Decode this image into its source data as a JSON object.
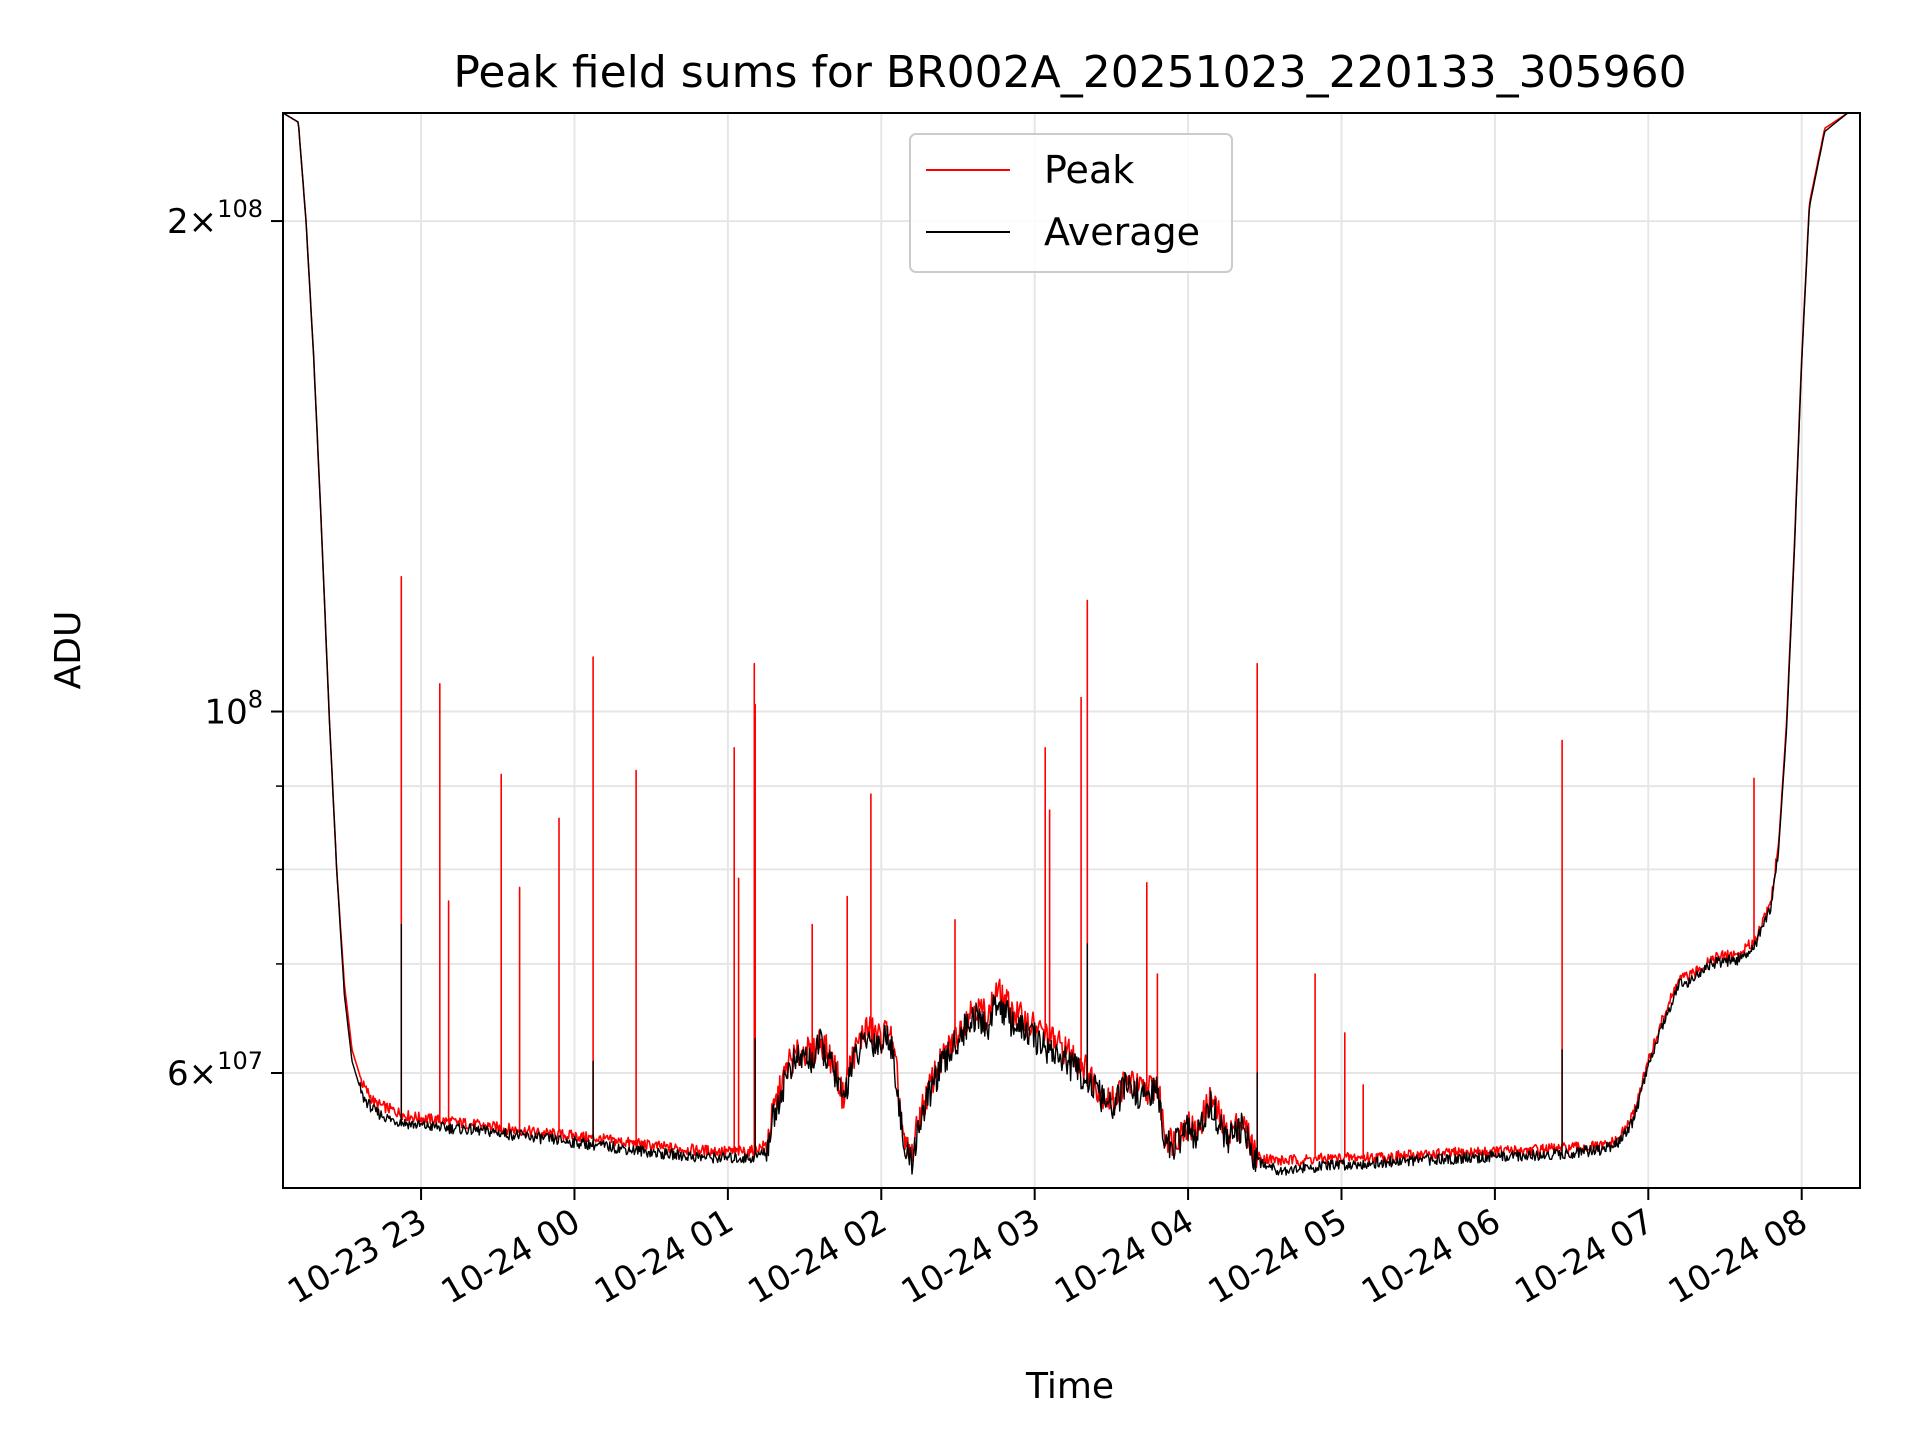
{
  "chart_data": {
    "type": "line",
    "title": "Peak field sums for BR002A_20251023_220133_305960",
    "xlabel": "Time",
    "ylabel": "ADU",
    "yscale": "log",
    "ylim": [
      51000000,
      233000000
    ],
    "xlim_hours": [
      22.1,
      32.38
    ],
    "grid": true,
    "legend_location": "upper center",
    "x_ticks": [
      {
        "label": "10-23 23",
        "hour": 23
      },
      {
        "label": "10-24 00",
        "hour": 24
      },
      {
        "label": "10-24 01",
        "hour": 25
      },
      {
        "label": "10-24 02",
        "hour": 26
      },
      {
        "label": "10-24 03",
        "hour": 27
      },
      {
        "label": "10-24 04",
        "hour": 28
      },
      {
        "label": "10-24 05",
        "hour": 29
      },
      {
        "label": "10-24 06",
        "hour": 30
      },
      {
        "label": "10-24 07",
        "hour": 31
      },
      {
        "label": "10-24 08",
        "hour": 32
      }
    ],
    "y_ticks_major": [
      {
        "label_base": "2",
        "label_sup": "8",
        "times": true,
        "value": 200000000
      },
      {
        "label_base": "10",
        "label_sup": "8",
        "times": false,
        "value": 100000000
      },
      {
        "label_base": "6",
        "label_sup": "7",
        "times": true,
        "value": 60000000
      }
    ],
    "y_ticks_minor": [
      70000000,
      80000000,
      90000000
    ],
    "series": [
      {
        "name": "Peak",
        "color": "#ff0000",
        "points": [
          [
            22.1,
            233000000
          ],
          [
            22.2,
            230000000
          ],
          [
            22.25,
            200000000
          ],
          [
            22.3,
            165000000
          ],
          [
            22.35,
            130000000
          ],
          [
            22.4,
            100000000
          ],
          [
            22.45,
            80000000
          ],
          [
            22.5,
            68000000
          ],
          [
            22.55,
            62000000
          ],
          [
            22.62,
            59000000
          ],
          [
            22.7,
            57500000
          ],
          [
            22.8,
            57000000
          ],
          [
            22.9,
            56500000
          ],
          [
            23.0,
            56300000
          ],
          [
            23.2,
            56000000
          ],
          [
            23.4,
            55700000
          ],
          [
            23.6,
            55400000
          ],
          [
            23.8,
            55100000
          ],
          [
            24.0,
            54900000
          ],
          [
            24.2,
            54600000
          ],
          [
            24.4,
            54300000
          ],
          [
            24.6,
            54000000
          ],
          [
            24.8,
            53800000
          ],
          [
            25.0,
            53700000
          ],
          [
            25.15,
            53700000
          ],
          [
            25.25,
            54200000
          ],
          [
            25.3,
            57000000
          ],
          [
            25.4,
            61000000
          ],
          [
            25.5,
            62000000
          ],
          [
            25.55,
            61500000
          ],
          [
            25.6,
            63000000
          ],
          [
            25.7,
            60500000
          ],
          [
            25.75,
            58000000
          ],
          [
            25.8,
            61000000
          ],
          [
            25.9,
            64000000
          ],
          [
            26.0,
            63000000
          ],
          [
            26.05,
            64000000
          ],
          [
            26.1,
            60000000
          ],
          [
            26.15,
            54000000
          ],
          [
            26.2,
            53500000
          ],
          [
            26.25,
            56500000
          ],
          [
            26.35,
            60000000
          ],
          [
            26.5,
            63500000
          ],
          [
            26.6,
            66000000
          ],
          [
            26.7,
            65000000
          ],
          [
            26.75,
            67500000
          ],
          [
            26.85,
            65500000
          ],
          [
            27.0,
            64000000
          ],
          [
            27.1,
            63000000
          ],
          [
            27.2,
            62000000
          ],
          [
            27.3,
            61000000
          ],
          [
            27.4,
            59000000
          ],
          [
            27.5,
            57500000
          ],
          [
            27.6,
            59500000
          ],
          [
            27.7,
            58500000
          ],
          [
            27.8,
            59000000
          ],
          [
            27.85,
            55000000
          ],
          [
            27.9,
            54500000
          ],
          [
            28.0,
            56000000
          ],
          [
            28.05,
            55000000
          ],
          [
            28.15,
            58000000
          ],
          [
            28.25,
            55000000
          ],
          [
            28.35,
            56000000
          ],
          [
            28.45,
            53300000
          ],
          [
            28.6,
            53000000
          ],
          [
            28.8,
            53100000
          ],
          [
            29.0,
            53200000
          ],
          [
            29.3,
            53300000
          ],
          [
            29.6,
            53500000
          ],
          [
            30.0,
            53700000
          ],
          [
            30.4,
            53900000
          ],
          [
            30.7,
            54100000
          ],
          [
            30.8,
            54500000
          ],
          [
            30.9,
            56500000
          ],
          [
            31.0,
            61000000
          ],
          [
            31.1,
            65000000
          ],
          [
            31.2,
            68500000
          ],
          [
            31.3,
            69000000
          ],
          [
            31.4,
            70500000
          ],
          [
            31.5,
            70800000
          ],
          [
            31.6,
            71000000
          ],
          [
            31.7,
            72500000
          ],
          [
            31.75,
            74500000
          ],
          [
            31.8,
            76500000
          ],
          [
            31.85,
            83000000
          ],
          [
            31.9,
            98000000
          ],
          [
            31.95,
            125000000
          ],
          [
            32.0,
            165000000
          ],
          [
            32.05,
            205000000
          ],
          [
            32.15,
            228000000
          ],
          [
            32.3,
            233000000
          ],
          [
            32.38,
            234000000
          ]
        ],
        "spikes": [
          [
            22.87,
            121000000
          ],
          [
            23.12,
            104000000
          ],
          [
            23.18,
            76500000
          ],
          [
            23.52,
            91500000
          ],
          [
            23.64,
            78000000
          ],
          [
            23.9,
            86000000
          ],
          [
            24.12,
            108000000
          ],
          [
            24.4,
            92000000
          ],
          [
            25.04,
            95000000
          ],
          [
            25.07,
            79000000
          ],
          [
            25.17,
            107000000
          ],
          [
            25.18,
            101000000
          ],
          [
            25.55,
            74000000
          ],
          [
            25.78,
            77000000
          ],
          [
            25.93,
            89000000
          ],
          [
            26.48,
            74500000
          ],
          [
            27.07,
            95000000
          ],
          [
            27.1,
            87000000
          ],
          [
            27.3,
            102000000
          ],
          [
            27.34,
            117000000
          ],
          [
            27.73,
            78500000
          ],
          [
            27.8,
            69000000
          ],
          [
            28.45,
            107000000
          ],
          [
            28.83,
            69000000
          ],
          [
            29.02,
            63500000
          ],
          [
            29.14,
            59000000
          ],
          [
            30.44,
            96000000
          ],
          [
            31.69,
            91000000
          ]
        ]
      },
      {
        "name": "Average",
        "color": "#000000",
        "points": [
          [
            22.1,
            233000000
          ],
          [
            22.2,
            230000000
          ],
          [
            22.25,
            200000000
          ],
          [
            22.3,
            165000000
          ],
          [
            22.35,
            130000000
          ],
          [
            22.4,
            100000000
          ],
          [
            22.45,
            80000000
          ],
          [
            22.5,
            67000000
          ],
          [
            22.55,
            61000000
          ],
          [
            22.62,
            58000000
          ],
          [
            22.7,
            56800000
          ],
          [
            22.8,
            56200000
          ],
          [
            22.9,
            55900000
          ],
          [
            23.0,
            55700000
          ],
          [
            23.2,
            55500000
          ],
          [
            23.4,
            55300000
          ],
          [
            23.6,
            55000000
          ],
          [
            23.8,
            54700000
          ],
          [
            24.0,
            54400000
          ],
          [
            24.2,
            54100000
          ],
          [
            24.4,
            53800000
          ],
          [
            24.6,
            53500000
          ],
          [
            24.8,
            53300000
          ],
          [
            25.0,
            53200000
          ],
          [
            25.15,
            53200000
          ],
          [
            25.25,
            53700000
          ],
          [
            25.3,
            56500000
          ],
          [
            25.4,
            60500000
          ],
          [
            25.5,
            61500000
          ],
          [
            25.55,
            61000000
          ],
          [
            25.6,
            62500000
          ],
          [
            25.7,
            60000000
          ],
          [
            25.75,
            57500000
          ],
          [
            25.8,
            60500000
          ],
          [
            25.9,
            63000000
          ],
          [
            26.0,
            62500000
          ],
          [
            26.05,
            63500000
          ],
          [
            26.1,
            59500000
          ],
          [
            26.15,
            53500000
          ],
          [
            26.2,
            53000000
          ],
          [
            26.25,
            56000000
          ],
          [
            26.35,
            59500000
          ],
          [
            26.5,
            63000000
          ],
          [
            26.6,
            65000000
          ],
          [
            26.7,
            64000000
          ],
          [
            26.75,
            66500000
          ],
          [
            26.85,
            64500000
          ],
          [
            27.0,
            63000000
          ],
          [
            27.1,
            62000000
          ],
          [
            27.2,
            61000000
          ],
          [
            27.3,
            60000000
          ],
          [
            27.4,
            58500000
          ],
          [
            27.5,
            57000000
          ],
          [
            27.6,
            59000000
          ],
          [
            27.7,
            58000000
          ],
          [
            27.8,
            58500000
          ],
          [
            27.85,
            54500000
          ],
          [
            27.9,
            54000000
          ],
          [
            28.0,
            55500000
          ],
          [
            28.05,
            54500000
          ],
          [
            28.15,
            57500000
          ],
          [
            28.25,
            54500000
          ],
          [
            28.35,
            55500000
          ],
          [
            28.45,
            53000000
          ],
          [
            28.6,
            52300000
          ],
          [
            28.8,
            52500000
          ],
          [
            29.0,
            52700000
          ],
          [
            29.3,
            52900000
          ],
          [
            29.6,
            53100000
          ],
          [
            30.0,
            53300000
          ],
          [
            30.4,
            53500000
          ],
          [
            30.7,
            53800000
          ],
          [
            30.8,
            54300000
          ],
          [
            30.9,
            56000000
          ],
          [
            31.0,
            60500000
          ],
          [
            31.1,
            64500000
          ],
          [
            31.2,
            68000000
          ],
          [
            31.3,
            68500000
          ],
          [
            31.4,
            70000000
          ],
          [
            31.5,
            70300000
          ],
          [
            31.6,
            70500000
          ],
          [
            31.7,
            72000000
          ],
          [
            31.75,
            74000000
          ],
          [
            31.8,
            76000000
          ],
          [
            31.85,
            82500000
          ],
          [
            31.9,
            97000000
          ],
          [
            31.95,
            124000000
          ],
          [
            32.0,
            164000000
          ],
          [
            32.05,
            204000000
          ],
          [
            32.15,
            227000000
          ],
          [
            32.3,
            233000000
          ],
          [
            32.38,
            234000000
          ]
        ],
        "spikes": [
          [
            22.87,
            74000000
          ],
          [
            24.12,
            61000000
          ],
          [
            25.18,
            63000000
          ],
          [
            27.34,
            72000000
          ],
          [
            28.45,
            60000000
          ],
          [
            30.44,
            62000000
          ]
        ]
      }
    ]
  },
  "colors": {
    "peak": "#ff0000",
    "average": "#000000",
    "grid": "#e6e6e6",
    "legend_border": "#cccccc"
  }
}
